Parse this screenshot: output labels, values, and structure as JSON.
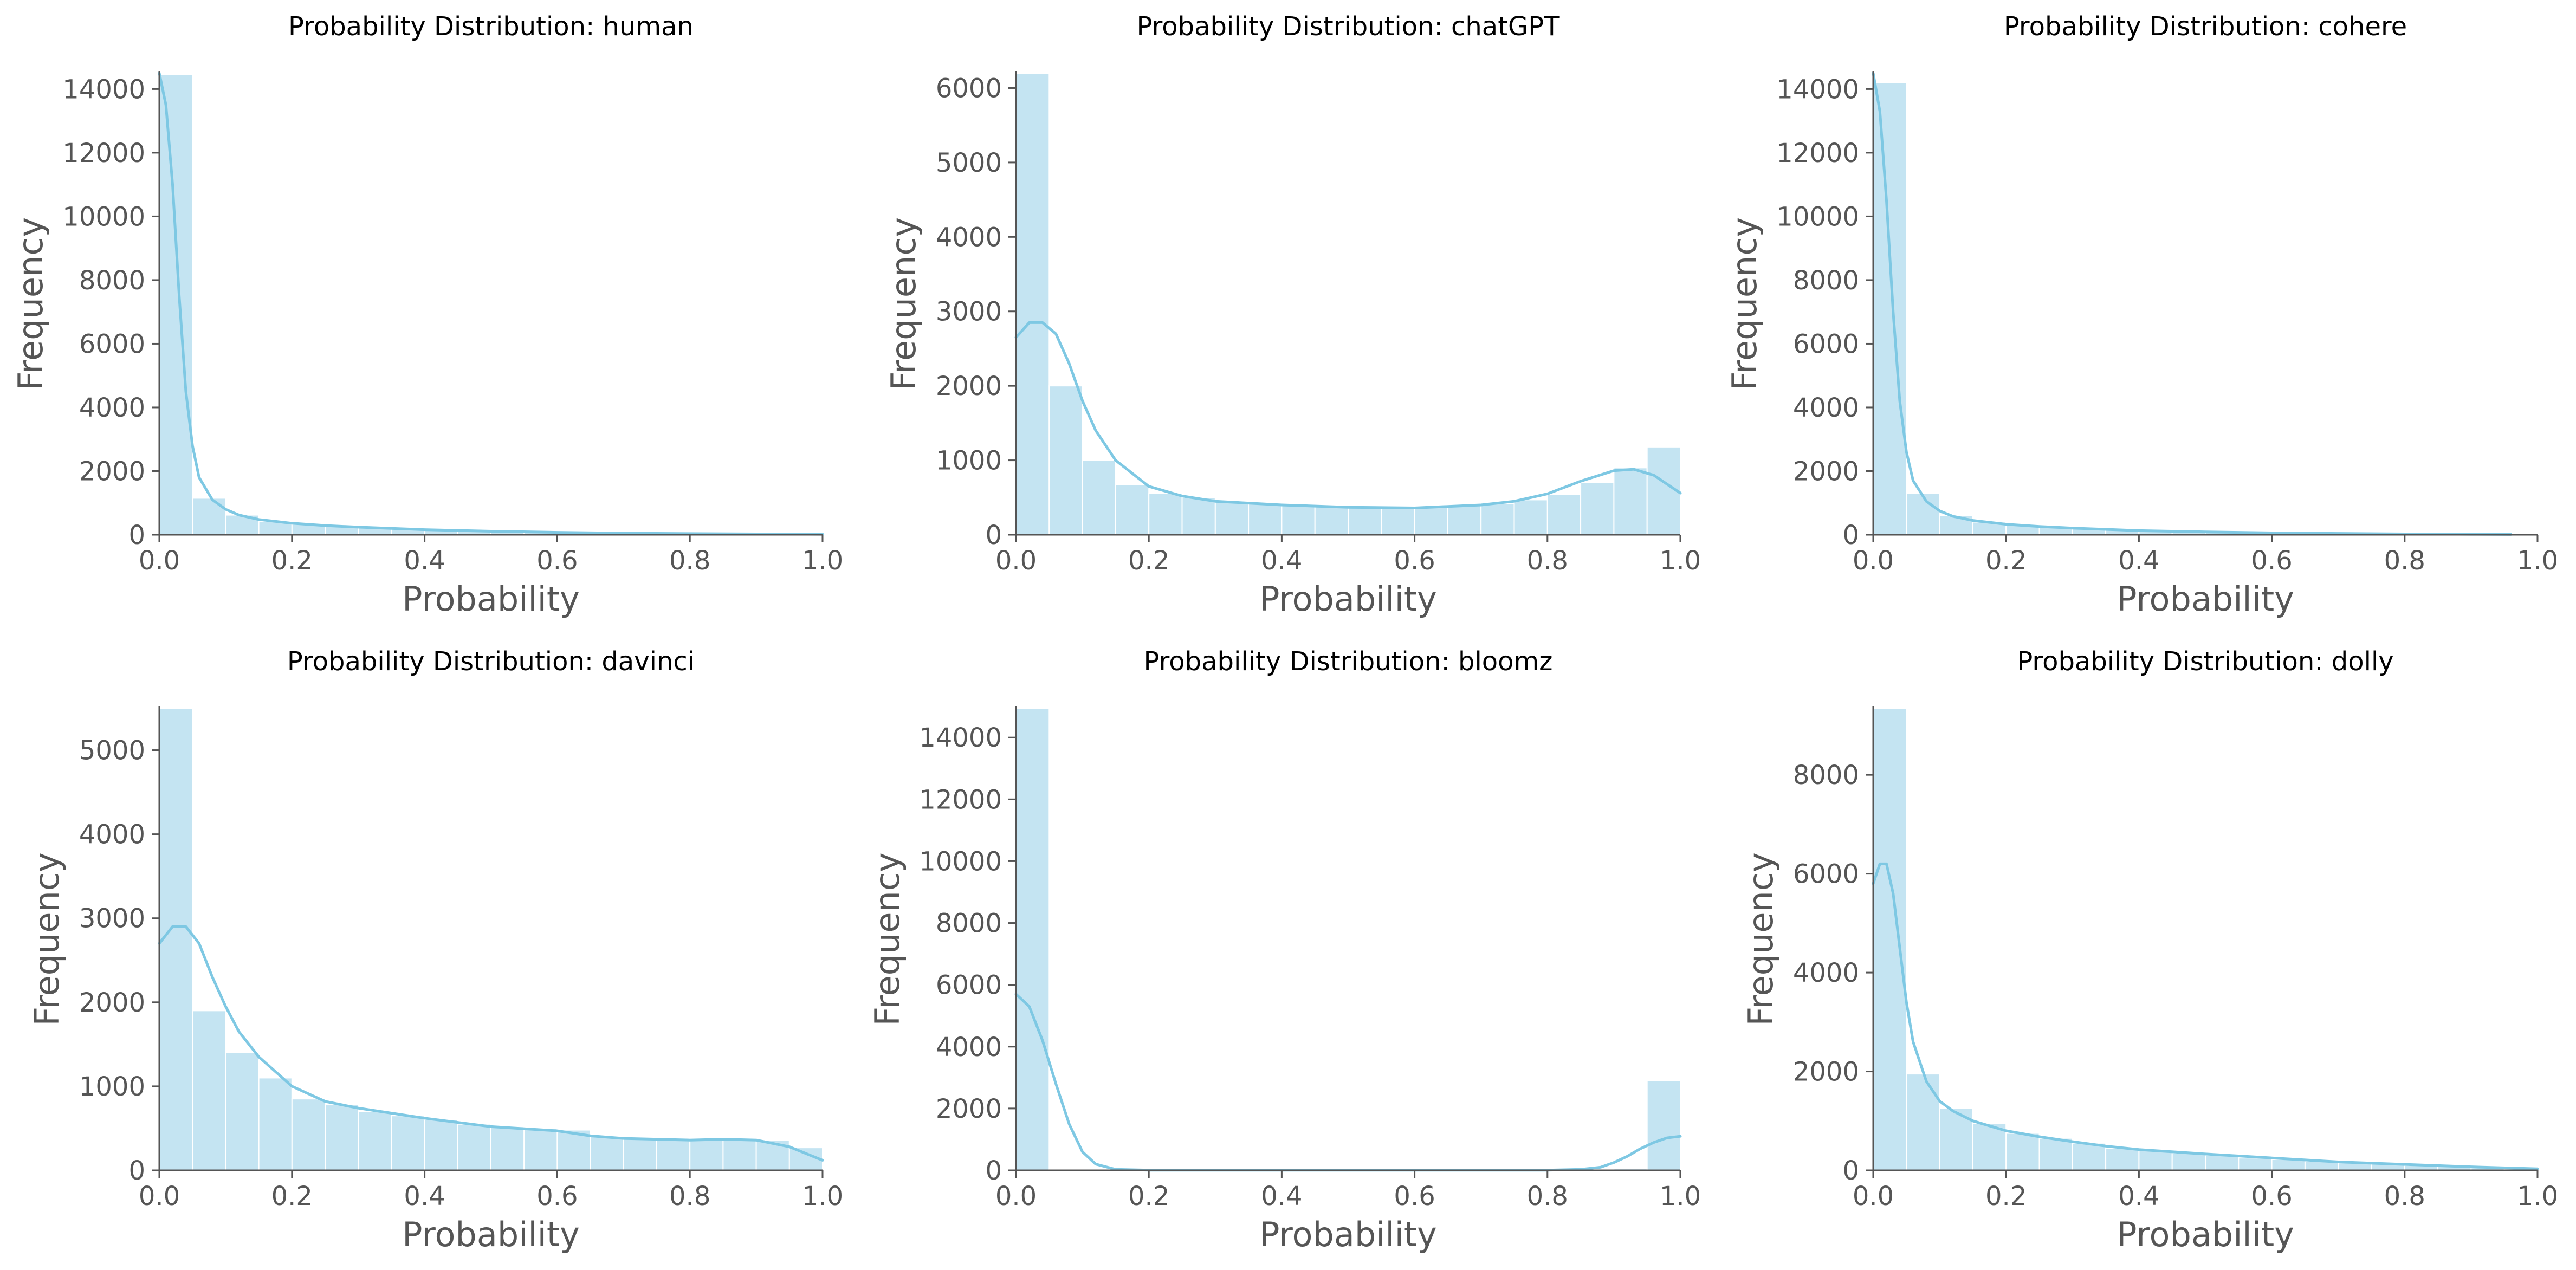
{
  "colors": {
    "bar_fill": "#c4e4f2",
    "kde_line": "#7ec8e3",
    "axis": "#555555",
    "title_text": "#000000"
  },
  "chart_data": [
    {
      "type": "bar",
      "title": "Probability Distribution: human",
      "xlabel": "Probability",
      "ylabel": "Frequency",
      "xlim": [
        0,
        1
      ],
      "ylim": [
        0,
        14500
      ],
      "grid": false,
      "xticks": [
        "0.0",
        "0.2",
        "0.4",
        "0.6",
        "0.8",
        "1.0"
      ],
      "yticks": [
        "0",
        "2000",
        "4000",
        "6000",
        "8000",
        "10000",
        "12000",
        "14000"
      ],
      "bin_edges": [
        0,
        0.05,
        0.1,
        0.15,
        0.2,
        0.25,
        0.3,
        0.35,
        0.4,
        0.45,
        0.5,
        0.55,
        0.6,
        0.65,
        0.7,
        0.75,
        0.8,
        0.85,
        0.9,
        0.95,
        1.0
      ],
      "values": [
        14450,
        1150,
        620,
        420,
        330,
        280,
        240,
        200,
        150,
        120,
        100,
        80,
        70,
        55,
        45,
        40,
        35,
        30,
        25,
        20
      ],
      "kde": {
        "x": [
          0,
          0.01,
          0.02,
          0.03,
          0.04,
          0.05,
          0.06,
          0.08,
          0.1,
          0.12,
          0.15,
          0.2,
          0.25,
          0.3,
          0.35,
          0.4,
          0.5,
          0.6,
          0.7,
          0.8,
          0.9,
          1.0
        ],
        "y": [
          14500,
          13500,
          11000,
          7500,
          4500,
          2800,
          1800,
          1100,
          800,
          620,
          480,
          360,
          290,
          240,
          200,
          160,
          110,
          75,
          50,
          35,
          25,
          15
        ]
      }
    },
    {
      "type": "bar",
      "title": "Probability Distribution: chatGPT",
      "xlabel": "Probability",
      "ylabel": "Frequency",
      "xlim": [
        0,
        1
      ],
      "ylim": [
        0,
        6200
      ],
      "grid": false,
      "xticks": [
        "0.0",
        "0.2",
        "0.4",
        "0.6",
        "0.8",
        "1.0"
      ],
      "yticks": [
        "0",
        "1000",
        "2000",
        "3000",
        "4000",
        "5000",
        "6000"
      ],
      "bin_edges": [
        0,
        0.05,
        0.1,
        0.15,
        0.2,
        0.25,
        0.3,
        0.35,
        0.4,
        0.45,
        0.5,
        0.55,
        0.6,
        0.65,
        0.7,
        0.75,
        0.8,
        0.85,
        0.9,
        0.95,
        1.0
      ],
      "values": [
        6200,
        2000,
        1000,
        670,
        560,
        500,
        450,
        420,
        400,
        390,
        380,
        370,
        380,
        390,
        420,
        470,
        540,
        700,
        900,
        1180
      ],
      "kde": {
        "x": [
          0,
          0.02,
          0.04,
          0.06,
          0.08,
          0.1,
          0.12,
          0.15,
          0.2,
          0.25,
          0.3,
          0.4,
          0.5,
          0.6,
          0.7,
          0.75,
          0.8,
          0.85,
          0.9,
          0.93,
          0.96,
          1.0
        ],
        "y": [
          2650,
          2850,
          2850,
          2700,
          2300,
          1800,
          1400,
          1000,
          650,
          520,
          450,
          400,
          370,
          360,
          400,
          450,
          550,
          720,
          860,
          880,
          800,
          560
        ]
      }
    },
    {
      "type": "bar",
      "title": "Probability Distribution: cohere",
      "xlabel": "Probability",
      "ylabel": "Frequency",
      "xlim": [
        0,
        1
      ],
      "ylim": [
        0,
        14500
      ],
      "grid": false,
      "xticks": [
        "0.0",
        "0.2",
        "0.4",
        "0.6",
        "0.8",
        "1.0"
      ],
      "yticks": [
        "0",
        "2000",
        "4000",
        "6000",
        "8000",
        "10000",
        "12000",
        "14000"
      ],
      "bin_edges": [
        0,
        0.05,
        0.1,
        0.15,
        0.2,
        0.25,
        0.3,
        0.35,
        0.4,
        0.45,
        0.5,
        0.55,
        0.6,
        0.65,
        0.7,
        0.75,
        0.8,
        0.85,
        0.9,
        0.95,
        1.0
      ],
      "values": [
        14200,
        1300,
        600,
        400,
        300,
        250,
        200,
        170,
        130,
        100,
        80,
        60,
        50,
        40,
        30,
        25,
        20,
        15,
        10,
        5
      ],
      "kde": {
        "x": [
          0,
          0.01,
          0.02,
          0.03,
          0.04,
          0.05,
          0.06,
          0.08,
          0.1,
          0.12,
          0.15,
          0.2,
          0.25,
          0.3,
          0.35,
          0.4,
          0.5,
          0.6,
          0.7,
          0.8,
          0.9,
          0.96
        ],
        "y": [
          14500,
          13300,
          10500,
          7000,
          4200,
          2600,
          1700,
          1050,
          750,
          580,
          450,
          330,
          260,
          210,
          170,
          130,
          90,
          60,
          40,
          25,
          15,
          10
        ]
      }
    },
    {
      "type": "bar",
      "title": "Probability Distribution: davinci",
      "xlabel": "Probability",
      "ylabel": "Frequency",
      "xlim": [
        0,
        1
      ],
      "ylim": [
        0,
        5500
      ],
      "grid": false,
      "xticks": [
        "0.0",
        "0.2",
        "0.4",
        "0.6",
        "0.8",
        "1.0"
      ],
      "yticks": [
        "0",
        "1000",
        "2000",
        "3000",
        "4000",
        "5000"
      ],
      "bin_edges": [
        0,
        0.05,
        0.1,
        0.15,
        0.2,
        0.25,
        0.3,
        0.35,
        0.4,
        0.45,
        0.5,
        0.55,
        0.6,
        0.65,
        0.7,
        0.75,
        0.8,
        0.85,
        0.9,
        0.95,
        1.0
      ],
      "values": [
        5500,
        1900,
        1400,
        1100,
        850,
        780,
        700,
        650,
        600,
        550,
        520,
        500,
        480,
        400,
        390,
        380,
        370,
        380,
        360,
        270
      ],
      "kde": {
        "x": [
          0,
          0.02,
          0.04,
          0.06,
          0.08,
          0.1,
          0.12,
          0.15,
          0.2,
          0.25,
          0.3,
          0.4,
          0.5,
          0.6,
          0.65,
          0.7,
          0.8,
          0.85,
          0.9,
          0.95,
          1.0
        ],
        "y": [
          2700,
          2900,
          2900,
          2700,
          2300,
          1950,
          1650,
          1350,
          1000,
          820,
          740,
          620,
          520,
          470,
          410,
          380,
          360,
          370,
          360,
          280,
          120
        ]
      }
    },
    {
      "type": "bar",
      "title": "Probability Distribution: bloomz",
      "xlabel": "Probability",
      "ylabel": "Frequency",
      "xlim": [
        0,
        1
      ],
      "ylim": [
        0,
        14950
      ],
      "grid": false,
      "xticks": [
        "0.0",
        "0.2",
        "0.4",
        "0.6",
        "0.8",
        "1.0"
      ],
      "yticks": [
        "0",
        "2000",
        "4000",
        "6000",
        "8000",
        "10000",
        "12000",
        "14000"
      ],
      "bin_edges": [
        0,
        0.05,
        0.1,
        0.15,
        0.2,
        0.25,
        0.3,
        0.35,
        0.4,
        0.45,
        0.5,
        0.55,
        0.6,
        0.65,
        0.7,
        0.75,
        0.8,
        0.85,
        0.9,
        0.95,
        1.0
      ],
      "values": [
        14950,
        30,
        15,
        10,
        8,
        6,
        5,
        5,
        5,
        5,
        5,
        5,
        5,
        5,
        5,
        8,
        10,
        20,
        50,
        2900
      ],
      "kde": {
        "x": [
          0,
          0.02,
          0.04,
          0.06,
          0.08,
          0.1,
          0.12,
          0.15,
          0.2,
          0.3,
          0.5,
          0.7,
          0.8,
          0.85,
          0.88,
          0.9,
          0.92,
          0.94,
          0.96,
          0.98,
          1.0
        ],
        "y": [
          5700,
          5300,
          4200,
          2800,
          1500,
          600,
          200,
          30,
          5,
          3,
          3,
          3,
          5,
          30,
          100,
          250,
          450,
          700,
          900,
          1050,
          1100
        ]
      }
    },
    {
      "type": "bar",
      "title": "Probability Distribution: dolly",
      "xlabel": "Probability",
      "ylabel": "Frequency",
      "xlim": [
        0,
        1
      ],
      "ylim": [
        0,
        9350
      ],
      "grid": false,
      "xticks": [
        "0.0",
        "0.2",
        "0.4",
        "0.6",
        "0.8",
        "1.0"
      ],
      "yticks": [
        "0",
        "2000",
        "4000",
        "6000",
        "8000"
      ],
      "bin_edges": [
        0,
        0.05,
        0.1,
        0.15,
        0.2,
        0.25,
        0.3,
        0.35,
        0.4,
        0.45,
        0.5,
        0.55,
        0.6,
        0.65,
        0.7,
        0.75,
        0.8,
        0.85,
        0.9,
        0.95,
        1.0
      ],
      "values": [
        9350,
        1950,
        1250,
        950,
        750,
        650,
        550,
        450,
        400,
        350,
        300,
        250,
        220,
        180,
        150,
        130,
        100,
        80,
        50,
        30
      ],
      "kde": {
        "x": [
          0,
          0.01,
          0.02,
          0.03,
          0.04,
          0.05,
          0.06,
          0.08,
          0.1,
          0.12,
          0.15,
          0.2,
          0.25,
          0.3,
          0.35,
          0.4,
          0.5,
          0.6,
          0.7,
          0.8,
          0.9,
          1.0
        ],
        "y": [
          5800,
          6200,
          6200,
          5600,
          4500,
          3400,
          2600,
          1800,
          1400,
          1200,
          1000,
          800,
          680,
          580,
          490,
          420,
          330,
          250,
          170,
          120,
          70,
          30
        ]
      }
    }
  ]
}
